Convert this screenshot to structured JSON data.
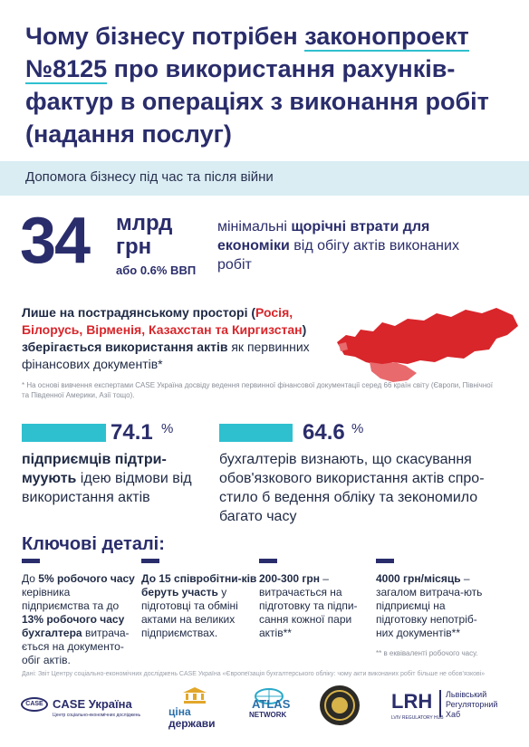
{
  "title": {
    "part1": "Чому бізнесу потрібен ",
    "highlight1": "законопроект",
    "highlight2": "№8125",
    "part2": " про використання рахунків-фактур в операціях з виконання робіт (надання послуг)"
  },
  "subtitle": "Допомога бізнесу під час та після війни",
  "headline": {
    "number": "34",
    "unit_line1": "млрд",
    "unit_line2": "грн",
    "gdp": "або 0.6% ВВП",
    "text_pre": "мінімальні ",
    "text_bold": "щорічні втрати для економіки",
    "text_post": " від обігу актів виконаних робіт"
  },
  "post_soviet": {
    "lead": "Лише на пострадянському просторі (",
    "countries": "Росія, Білорусь, Вірменія, Казахстан та Киргизстан",
    "mid": ") зберігається використання ",
    "bold2": "актів",
    "tail": " як первинних фінансових документів*",
    "note": "* На основі вивчення експертами CASE Україна досвіду ведення первинної фінансової документації серед 66 країн світу (Європи, Північної та Південної Америки, Азії тощо)."
  },
  "stats": [
    {
      "value": "74.1",
      "sign": "%",
      "bar_fraction": 0.741,
      "bold": "підприємців підтри-муують",
      "text": " ідею відмови від використання актів"
    },
    {
      "value": "64.6",
      "sign": "%",
      "bar_fraction": 0.646,
      "bold": "",
      "text": "бухгалтерів визнають, що скасування обов'язкового використання актів спро-стило б ведення обліку та зекономило багато часу"
    }
  ],
  "key_details": {
    "title": "Ключові деталі:",
    "items": [
      {
        "parts": [
          "До ",
          "5% робочого часу",
          " керівника підприємства та до ",
          "13% робочого часу бухгалтера",
          " витрача-ється на документо-обіг актів."
        ]
      },
      {
        "parts": [
          "",
          "До 15 співробітни-ків беруть участь",
          " у підготовці та обміні актами на великих підприємствах."
        ]
      },
      {
        "parts": [
          "",
          "200-300 грн",
          " – витрачається на підготовку та підпи-сання кожної пари актів**"
        ]
      },
      {
        "parts": [
          "",
          "4000 грн/місяць",
          " – загалом витрача-ють підприємці на підготовку непотріб-них документів**"
        ]
      }
    ],
    "note": "** в еквіваленті робочого часу."
  },
  "source": "Дані: Звіт Центру соціально-економічних досліджень CASE Україна «Європеїзація бухгалтерського обліку: чому акти виконаних робіт більше не обов’язкові»",
  "logos": {
    "case": "CASE Україна",
    "case_sub": "Центр соціально-економічних досліджень",
    "case_badge": "CASE",
    "tsina": "ціна",
    "derzhavy": "держави",
    "atlas": "ATLAS",
    "network": "NETWORK",
    "lrh": "LRH",
    "lrh_sub": "LVIV REGULATORY HUB",
    "lrh_name1": "Львівський",
    "lrh_name2": "Регуляторний",
    "lrh_name3": "Хаб"
  },
  "colors": {
    "navy": "#2a2d6b",
    "accent": "#2fc0d0",
    "red": "#d8262b",
    "band": "#d9edf3"
  }
}
